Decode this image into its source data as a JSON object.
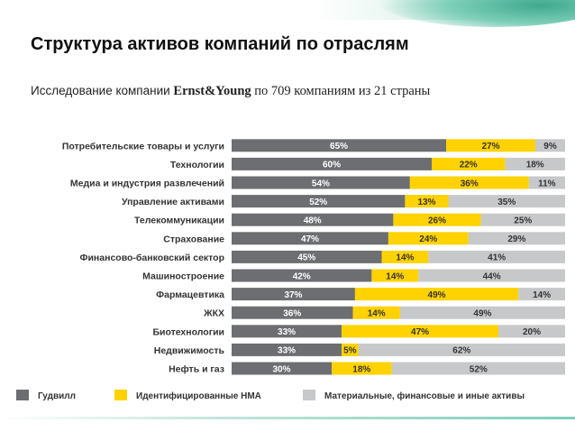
{
  "slide": {
    "title": "Структура активов компаний по отраслям",
    "subtitle_prefix": "Исследование компании ",
    "subtitle_brand": "Ernst&Young",
    "subtitle_suffix": " по 709 компаниям из 21 страны"
  },
  "colors": {
    "goodwill": "#6d6e71",
    "intangible": "#ffd200",
    "tangible": "#c7c8ca"
  },
  "chart_data": {
    "type": "bar",
    "orientation": "horizontal",
    "stacked": true,
    "value_unit": "%",
    "xlim": [
      0,
      100
    ],
    "legend_position": "bottom",
    "categories": [
      "Потребительские товары и услуги",
      "Технологии",
      "Медиа и индустрия развлечений",
      "Управление активами",
      "Телекоммуникации",
      "Страхование",
      "Финансово-банковский сектор",
      "Машиностроение",
      "Фармацевтика",
      "ЖКХ",
      "Биотехнологии",
      "Недвижимость",
      "Нефть и газ"
    ],
    "series": [
      {
        "name": "Гудвилл",
        "values": [
          65,
          60,
          54,
          52,
          48,
          47,
          45,
          42,
          37,
          36,
          33,
          33,
          30
        ]
      },
      {
        "name": "Идентифицированные НМА",
        "values": [
          27,
          22,
          36,
          13,
          26,
          24,
          14,
          14,
          49,
          14,
          47,
          5,
          18
        ]
      },
      {
        "name": "Материальные, финансовые и иные активы",
        "values": [
          9,
          18,
          11,
          35,
          25,
          29,
          41,
          44,
          14,
          49,
          20,
          62,
          52
        ]
      }
    ]
  }
}
